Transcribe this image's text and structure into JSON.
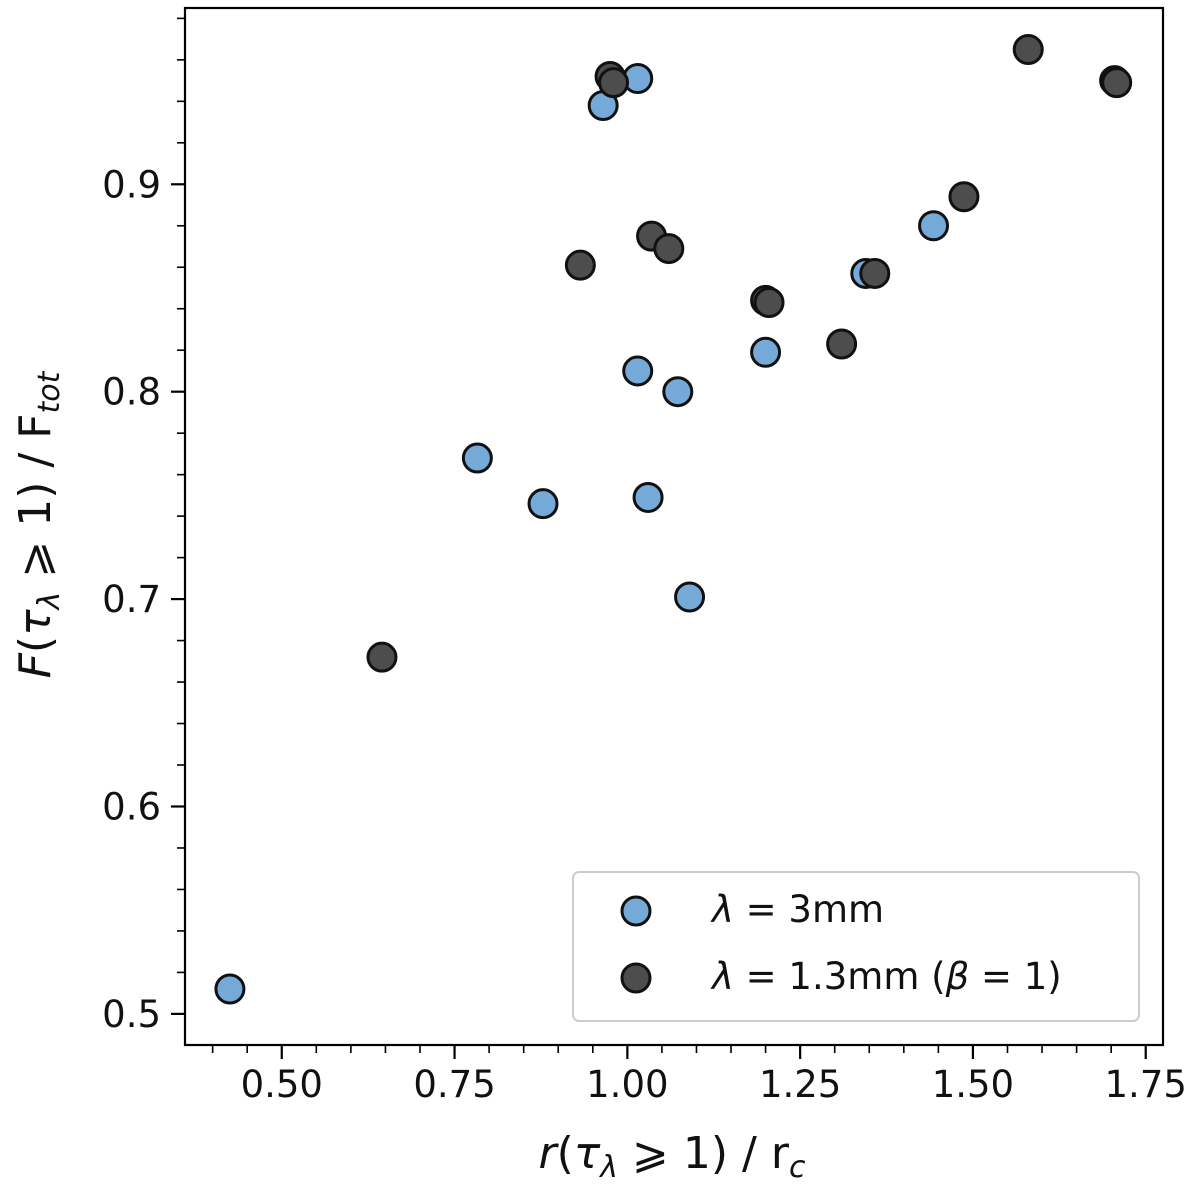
{
  "chart_data": {
    "type": "scatter",
    "xlabel": "r(τλ ⩾ 1) / rc",
    "ylabel": "F(τλ ⩾ 1) / Ftot",
    "xlim": [
      0.36,
      1.775
    ],
    "ylim": [
      0.485,
      0.985
    ],
    "x_ticks": [
      0.5,
      0.75,
      1.0,
      1.25,
      1.5,
      1.75
    ],
    "x_tick_labels": [
      "0.50",
      "0.75",
      "1.00",
      "1.25",
      "1.50",
      "1.75"
    ],
    "y_ticks": [
      0.5,
      0.6,
      0.7,
      0.8,
      0.9
    ],
    "y_tick_labels": [
      "0.5",
      "0.6",
      "0.7",
      "0.8",
      "0.9"
    ],
    "x_minor_step": 0.05,
    "y_minor_step": 0.02,
    "grid": false,
    "legend_position": "bottom-right",
    "series": [
      {
        "name": "λ = 3mm",
        "legend_parts": {
          "symbol": "λ",
          "text": " = 3mm"
        },
        "color": "#74a9d8",
        "edge_color": "#111111",
        "points": [
          {
            "x": 0.425,
            "y": 0.512
          },
          {
            "x": 0.783,
            "y": 0.768
          },
          {
            "x": 0.878,
            "y": 0.746
          },
          {
            "x": 0.965,
            "y": 0.938
          },
          {
            "x": 1.015,
            "y": 0.951
          },
          {
            "x": 1.015,
            "y": 0.81
          },
          {
            "x": 1.03,
            "y": 0.749
          },
          {
            "x": 1.073,
            "y": 0.8
          },
          {
            "x": 1.09,
            "y": 0.701
          },
          {
            "x": 1.2,
            "y": 0.819
          },
          {
            "x": 1.345,
            "y": 0.857
          },
          {
            "x": 1.443,
            "y": 0.88
          }
        ]
      },
      {
        "name": "λ = 1.3mm (β = 1)",
        "legend_parts": {
          "symbol": "λ",
          "text": " = 1.3mm (",
          "symbol2": "β",
          "text2": " = 1)"
        },
        "color": "#4d4d4d",
        "edge_color": "#111111",
        "points": [
          {
            "x": 0.645,
            "y": 0.672
          },
          {
            "x": 0.932,
            "y": 0.861
          },
          {
            "x": 0.975,
            "y": 0.952
          },
          {
            "x": 0.98,
            "y": 0.949
          },
          {
            "x": 1.035,
            "y": 0.875
          },
          {
            "x": 1.06,
            "y": 0.869
          },
          {
            "x": 1.2,
            "y": 0.844
          },
          {
            "x": 1.205,
            "y": 0.843
          },
          {
            "x": 1.31,
            "y": 0.823
          },
          {
            "x": 1.358,
            "y": 0.857
          },
          {
            "x": 1.487,
            "y": 0.894
          },
          {
            "x": 1.58,
            "y": 0.965
          },
          {
            "x": 1.705,
            "y": 0.95
          },
          {
            "x": 1.708,
            "y": 0.949
          }
        ]
      }
    ]
  }
}
